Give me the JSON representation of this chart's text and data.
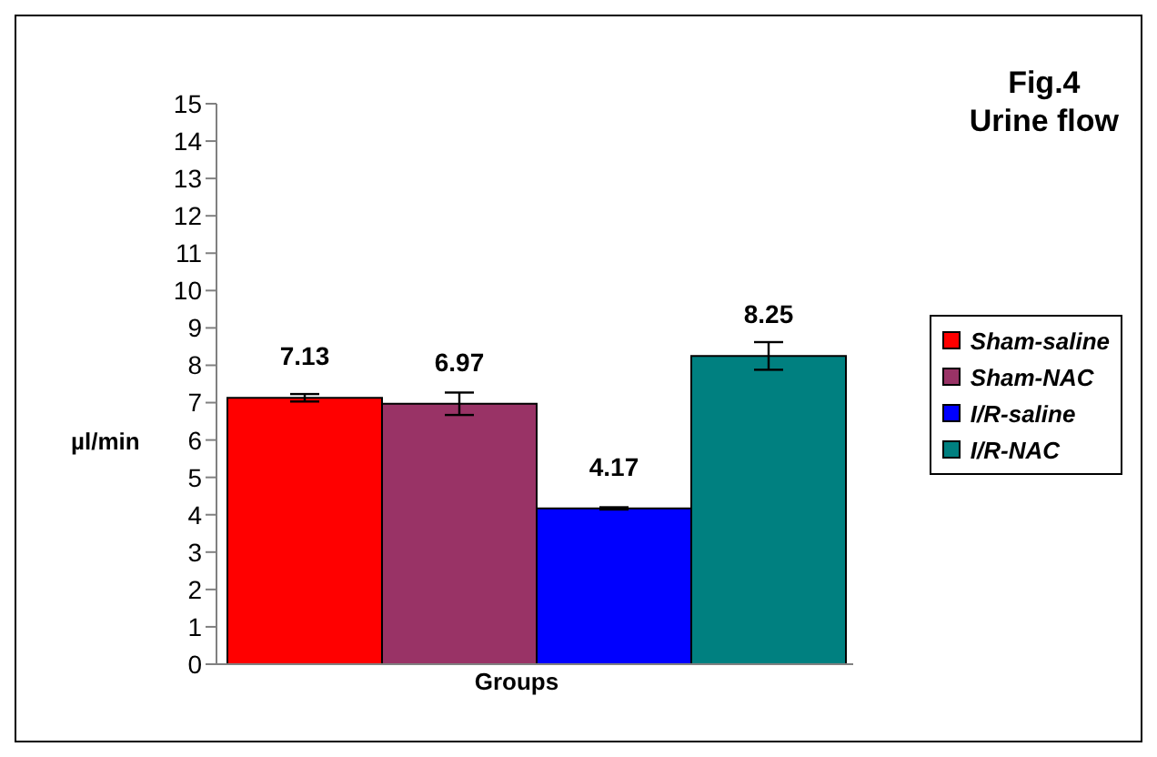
{
  "chart_data": {
    "type": "bar",
    "title": "Fig.4",
    "subtitle": "Urine flow",
    "xlabel": "Groups",
    "ylabel": "µl/min",
    "categories": [
      null
    ],
    "series": [
      {
        "name": "Sham-saline",
        "color": "#ff0000",
        "values": [
          7.13
        ],
        "errors": [
          0.1
        ]
      },
      {
        "name": "Sham-NAC",
        "color": "#993366",
        "values": [
          6.97
        ],
        "errors": [
          0.3
        ]
      },
      {
        "name": "I/R-saline",
        "color": "#0000ff",
        "values": [
          4.17
        ],
        "errors": [
          0.03
        ]
      },
      {
        "name": "I/R-NAC",
        "color": "#008080",
        "values": [
          8.25
        ],
        "errors": [
          0.37
        ]
      }
    ],
    "ylim": [
      0,
      15
    ],
    "yticks": [
      0,
      1,
      2,
      3,
      4,
      5,
      6,
      7,
      8,
      9,
      10,
      11,
      12,
      13,
      14,
      15
    ],
    "grid": false,
    "legend": "right",
    "data_labels": true
  }
}
